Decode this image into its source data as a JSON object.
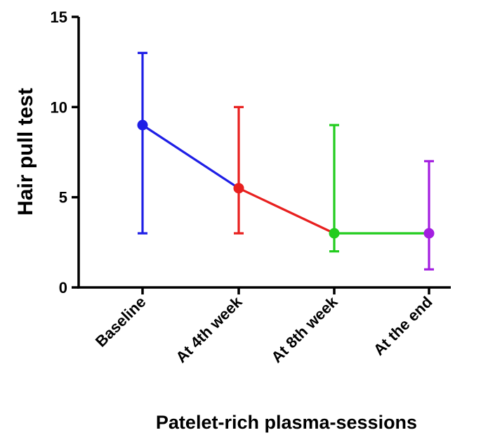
{
  "chart_data": {
    "type": "line",
    "title": "",
    "xlabel": "Patelet-rich plasma-sessions",
    "ylabel": "Hair pull test",
    "categories": [
      "Baseline",
      "At 4th week",
      "At 8th week",
      "At the end"
    ],
    "ylim": [
      0,
      15
    ],
    "yticks": [
      0,
      5,
      10,
      15
    ],
    "grid": false,
    "legend": "none",
    "points": [
      {
        "category": "Baseline",
        "value": 9.0,
        "error_low": 3.0,
        "error_high": 13.0,
        "color": "#1f1fe6"
      },
      {
        "category": "At 4th week",
        "value": 5.5,
        "error_low": 3.0,
        "error_high": 10.0,
        "color": "#e8201f"
      },
      {
        "category": "At 8th week",
        "value": 3.0,
        "error_low": 2.0,
        "error_high": 9.0,
        "color": "#22cc1e"
      },
      {
        "category": "At the end",
        "value": 3.0,
        "error_low": 1.0,
        "error_high": 7.0,
        "color": "#a31ee0"
      }
    ]
  }
}
